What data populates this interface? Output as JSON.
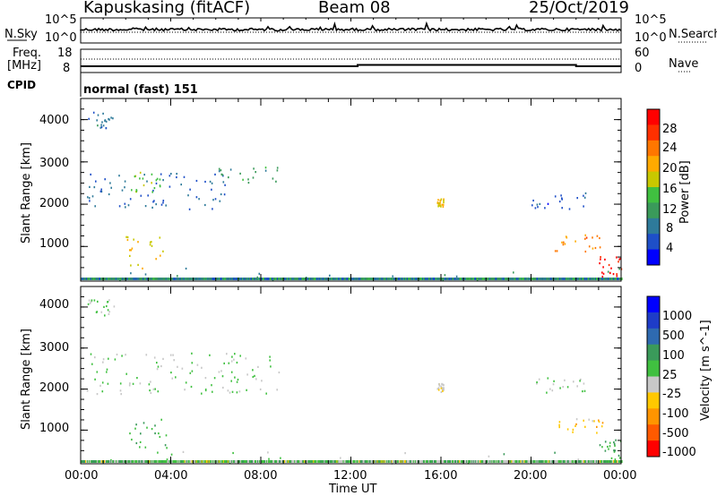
{
  "header": {
    "station": "Kapuskasing (fitACF)",
    "beam": "Beam 08",
    "date": "25/Oct/2019"
  },
  "noise_panel": {
    "left_label": "N.Sky",
    "left_ticks": [
      "10^5",
      "10^0"
    ],
    "right_label": "N.Search",
    "right_ticks": [
      "10^5",
      "10^0"
    ]
  },
  "freq_panel": {
    "left_label_top": "Freq.",
    "left_label_unit": "[MHz]",
    "left_ticks": [
      "18",
      "8"
    ],
    "right_label": "Nave",
    "right_ticks": [
      "60",
      "0"
    ],
    "cpid_label": "CPID",
    "cpid_text": "normal (fast) 151"
  },
  "colors": {
    "power_scale": [
      "#0000ff",
      "#1e4fc8",
      "#2e7a9a",
      "#3a9a5a",
      "#40c040",
      "#c8c800",
      "#ffaa00",
      "#ff7700",
      "#ff3000",
      "#ff0000"
    ],
    "velocity_scale": [
      "#ff0000",
      "#ff5a00",
      "#ff9500",
      "#ffc800",
      "#c8c8c8",
      "#40c040",
      "#3a9a5a",
      "#2e6ab0",
      "#1e3cc8",
      "#0000ff"
    ]
  },
  "chart_data": [
    {
      "type": "heatmap",
      "name": "power",
      "ylabel": "Slant Range [km]",
      "yticks": [
        "4000",
        "3000",
        "2000",
        "1000"
      ],
      "ylim": [
        180,
        4500
      ],
      "colorbar_label": "Power [dB]",
      "colorbar_ticks": [
        "28",
        "24",
        "20",
        "16",
        "12",
        "8",
        "4"
      ],
      "clim": [
        0,
        30
      ],
      "regions": [
        {
          "t": [
            0.2,
            6.5
          ],
          "r": [
            1900,
            2800
          ],
          "value": 6
        },
        {
          "t": [
            2.2,
            3.6
          ],
          "r": [
            2300,
            2800
          ],
          "value": 14
        },
        {
          "t": [
            6.0,
            8.8
          ],
          "r": [
            2500,
            2900
          ],
          "value": 10
        },
        {
          "t": [
            0.3,
            1.5
          ],
          "r": [
            3800,
            4200
          ],
          "value": 7
        },
        {
          "t": [
            2.0,
            3.8
          ],
          "r": [
            500,
            1300
          ],
          "value": 18
        },
        {
          "t": [
            15.8,
            16.1
          ],
          "r": [
            1950,
            2150
          ],
          "value": 18
        },
        {
          "t": [
            20.0,
            22.5
          ],
          "r": [
            1900,
            2300
          ],
          "value": 5
        },
        {
          "t": [
            21.0,
            23.2
          ],
          "r": [
            900,
            1300
          ],
          "value": 22
        },
        {
          "t": [
            23.0,
            24.0
          ],
          "r": [
            300,
            800
          ],
          "value": 28
        },
        {
          "t": [
            0.0,
            24.0
          ],
          "r": [
            200,
            500
          ],
          "value": 9
        }
      ]
    },
    {
      "type": "heatmap",
      "name": "velocity",
      "ylabel": "Slant Range [km]",
      "yticks": [
        "4000",
        "3000",
        "2000",
        "1000"
      ],
      "ylim": [
        180,
        4500
      ],
      "colorbar_label": "Velocity [m s^-1]",
      "colorbar_ticks": [
        "1000",
        "500",
        "100",
        "25",
        "-25",
        "-100",
        "-500",
        "-1000"
      ],
      "clim": [
        -1000,
        1000
      ],
      "regions": [
        {
          "t": [
            0.2,
            8.8
          ],
          "r": [
            1900,
            2900
          ],
          "value": 0
        },
        {
          "t": [
            0.3,
            1.5
          ],
          "r": [
            3800,
            4200
          ],
          "value": 0
        },
        {
          "t": [
            2.0,
            3.8
          ],
          "r": [
            500,
            1300
          ],
          "value": 150
        },
        {
          "t": [
            15.8,
            16.1
          ],
          "r": [
            1950,
            2150
          ],
          "value": -150
        },
        {
          "t": [
            20.0,
            22.5
          ],
          "r": [
            1900,
            2300
          ],
          "value": 0
        },
        {
          "t": [
            21.0,
            23.2
          ],
          "r": [
            900,
            1300
          ],
          "value": -300
        },
        {
          "t": [
            23.0,
            24.0
          ],
          "r": [
            300,
            800
          ],
          "value": 200
        },
        {
          "t": [
            0.0,
            24.0
          ],
          "r": [
            200,
            500
          ],
          "value": 60
        }
      ]
    }
  ],
  "x_axis": {
    "label": "Time UT",
    "ticks": [
      "00:00",
      "04:00",
      "08:00",
      "12:00",
      "16:00",
      "20:00",
      "00:00"
    ],
    "xlim_hours": [
      0,
      24
    ]
  }
}
